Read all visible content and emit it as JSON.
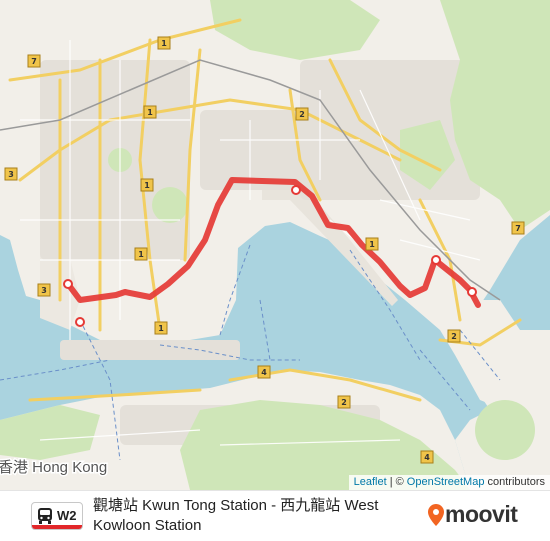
{
  "map": {
    "place_label": "香港 Hong Kong",
    "route_shields": [
      "7",
      "1",
      "2",
      "1",
      "1",
      "3",
      "1",
      "3",
      "1",
      "7",
      "2",
      "4",
      "2",
      "4",
      "1"
    ],
    "colors": {
      "water": "#aad3df",
      "land": "#f2efe9",
      "urban": "#e6e2dc",
      "park": "#c8e6b4",
      "road_major": "#f4d97a",
      "route_line": "#e53935"
    }
  },
  "attribution": {
    "leaflet": "Leaflet",
    "separator": "|",
    "copyright": "©",
    "osm": "OpenStreetMap",
    "contributors": "contributors"
  },
  "footer": {
    "route_code": "W2",
    "route_title": "觀塘站 Kwun Tong Station - 西九龍站 West Kowloon Station",
    "brand": "moovit",
    "icons": {
      "bus": "bus-icon",
      "brand_pin": "map-pin-icon"
    },
    "accent": "#e2272a",
    "brand_color": "#f26522"
  }
}
